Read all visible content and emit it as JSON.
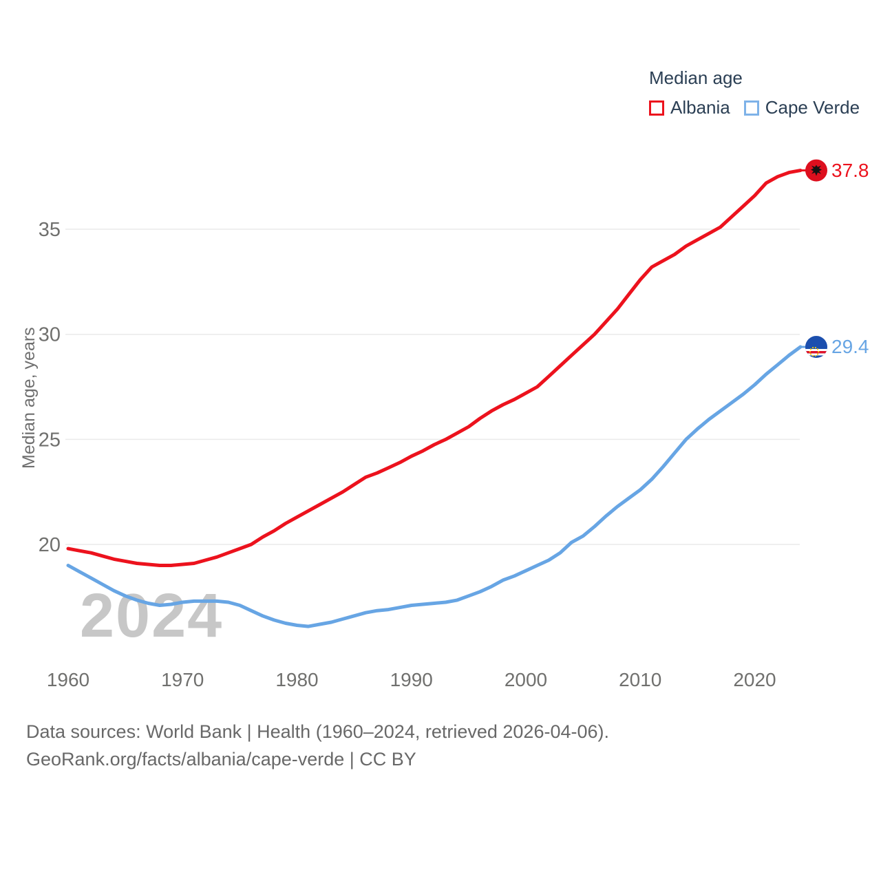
{
  "legend": {
    "title": "Median age",
    "items": [
      {
        "label": "Albania",
        "color": "#ec121d"
      },
      {
        "label": "Cape Verde",
        "color": "#7eb2e8"
      }
    ]
  },
  "chart_data": {
    "type": "line",
    "title": "Median age",
    "xlabel": "",
    "ylabel": "Median age, years",
    "watermark": "2024",
    "grid": "horizontal",
    "legend_position": "top-right",
    "xlim": [
      1960,
      2024
    ],
    "ylim": [
      15.5,
      38.5
    ],
    "x_ticks": [
      1960,
      1970,
      1980,
      1990,
      2000,
      2010,
      2020
    ],
    "y_ticks": [
      20,
      25,
      30,
      35
    ],
    "x": [
      1960,
      1961,
      1962,
      1963,
      1964,
      1965,
      1966,
      1967,
      1968,
      1969,
      1970,
      1971,
      1972,
      1973,
      1974,
      1975,
      1976,
      1977,
      1978,
      1979,
      1980,
      1981,
      1982,
      1983,
      1984,
      1985,
      1986,
      1987,
      1988,
      1989,
      1990,
      1991,
      1992,
      1993,
      1994,
      1995,
      1996,
      1997,
      1998,
      1999,
      2000,
      2001,
      2002,
      2003,
      2004,
      2005,
      2006,
      2007,
      2008,
      2009,
      2010,
      2011,
      2012,
      2013,
      2014,
      2015,
      2016,
      2017,
      2018,
      2019,
      2020,
      2021,
      2022,
      2023,
      2024
    ],
    "series": [
      {
        "name": "Albania",
        "color": "#ec121d",
        "end_label": "37.8",
        "flag": "albania",
        "values": [
          19.8,
          19.7,
          19.6,
          19.45,
          19.3,
          19.2,
          19.1,
          19.05,
          19.0,
          19.0,
          19.05,
          19.1,
          19.25,
          19.4,
          19.6,
          19.8,
          20.0,
          20.35,
          20.65,
          21.0,
          21.3,
          21.6,
          21.9,
          22.2,
          22.5,
          22.85,
          23.2,
          23.4,
          23.65,
          23.9,
          24.2,
          24.45,
          24.75,
          25.0,
          25.3,
          25.6,
          26.0,
          26.35,
          26.65,
          26.9,
          27.2,
          27.5,
          28.0,
          28.5,
          29.0,
          29.5,
          30.0,
          30.6,
          31.2,
          31.9,
          32.6,
          33.2,
          33.5,
          33.8,
          34.2,
          34.5,
          34.8,
          35.1,
          35.6,
          36.1,
          36.6,
          37.2,
          37.5,
          37.7,
          37.8
        ]
      },
      {
        "name": "Cape Verde",
        "color": "#67a5e4",
        "end_label": "29.4",
        "flag": "cape-verde",
        "values": [
          19.0,
          18.7,
          18.4,
          18.1,
          17.8,
          17.55,
          17.35,
          17.2,
          17.1,
          17.15,
          17.25,
          17.3,
          17.3,
          17.3,
          17.25,
          17.1,
          16.85,
          16.6,
          16.4,
          16.25,
          16.15,
          16.1,
          16.2,
          16.3,
          16.45,
          16.6,
          16.75,
          16.85,
          16.9,
          17.0,
          17.1,
          17.15,
          17.2,
          17.25,
          17.35,
          17.55,
          17.75,
          18.0,
          18.3,
          18.5,
          18.75,
          19.0,
          19.25,
          19.6,
          20.1,
          20.4,
          20.85,
          21.35,
          21.8,
          22.2,
          22.6,
          23.1,
          23.7,
          24.35,
          25.0,
          25.5,
          25.95,
          26.35,
          26.75,
          27.15,
          27.6,
          28.1,
          28.55,
          29.0,
          29.4
        ]
      }
    ]
  },
  "footer": {
    "line1": "Data sources: World Bank | Health (1960–2024, retrieved 2026-04-06).",
    "line2": "GeoRank.org/facts/albania/cape-verde | CC BY"
  },
  "colors": {
    "grid": "#eaeaea",
    "axis_text": "#70706e",
    "legend_text": "#2b3f54",
    "watermark": "#c7c7c7",
    "albania_flag_red": "#dd0f1e",
    "cape_verde_flag_blue": "#1c4fae"
  }
}
